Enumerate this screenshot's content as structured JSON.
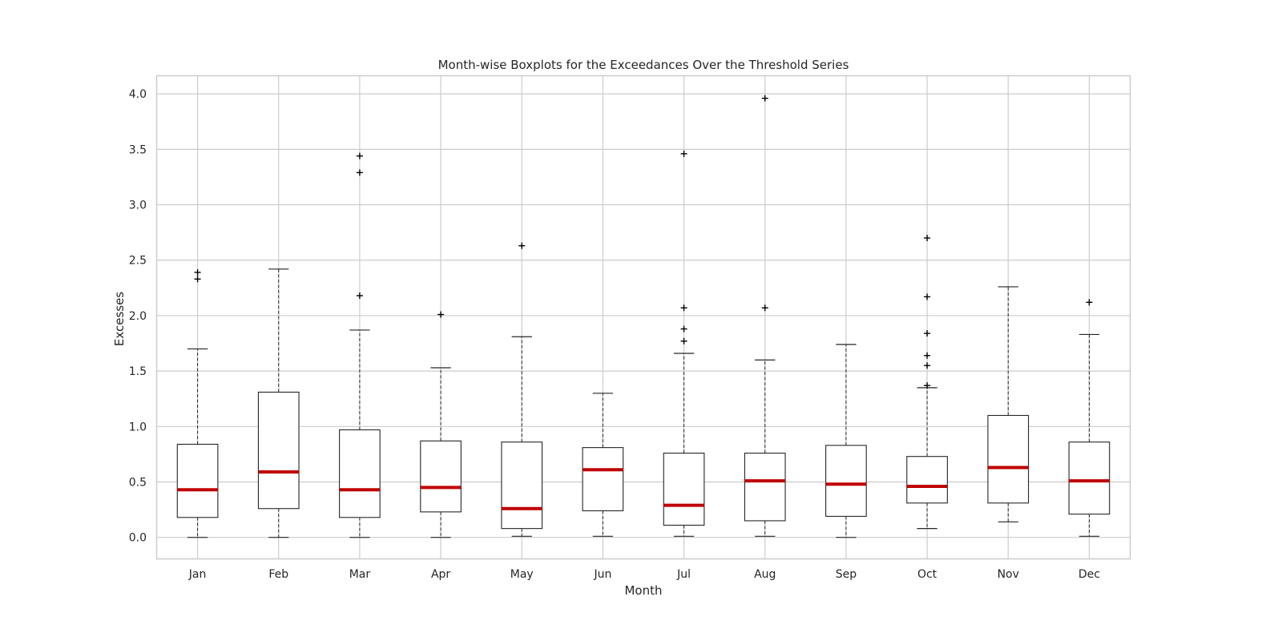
{
  "chart_data": {
    "type": "boxplot",
    "title": "Month-wise Boxplots for the Exceedances Over the Threshold Series",
    "xlabel": "Month",
    "ylabel": "Excesses",
    "ylim": [
      -0.19,
      4.16
    ],
    "yticks": [
      "0.0",
      "0.5",
      "1.0",
      "1.5",
      "2.0",
      "2.5",
      "3.0",
      "3.5",
      "4.0"
    ],
    "grid": true,
    "colors": {
      "median": "#c00000",
      "box": "#262626",
      "grid": "#cccccc",
      "frame": "#cccccc"
    },
    "categories": [
      "Jan",
      "Feb",
      "Mar",
      "Apr",
      "May",
      "Jun",
      "Jul",
      "Aug",
      "Sep",
      "Oct",
      "Nov",
      "Dec"
    ],
    "boxes": [
      {
        "whislo": 0.0,
        "q1": 0.18,
        "med": 0.43,
        "q3": 0.84,
        "whishi": 1.7,
        "fliers": [
          2.33,
          2.39
        ]
      },
      {
        "whislo": 0.0,
        "q1": 0.26,
        "med": 0.59,
        "q3": 1.31,
        "whishi": 2.42,
        "fliers": []
      },
      {
        "whislo": 0.0,
        "q1": 0.18,
        "med": 0.43,
        "q3": 0.97,
        "whishi": 1.87,
        "fliers": [
          2.18,
          3.29,
          3.44
        ]
      },
      {
        "whislo": 0.0,
        "q1": 0.23,
        "med": 0.45,
        "q3": 0.87,
        "whishi": 1.53,
        "fliers": [
          2.01
        ]
      },
      {
        "whislo": 0.01,
        "q1": 0.08,
        "med": 0.26,
        "q3": 0.86,
        "whishi": 1.81,
        "fliers": [
          2.63
        ]
      },
      {
        "whislo": 0.01,
        "q1": 0.24,
        "med": 0.61,
        "q3": 0.81,
        "whishi": 1.3,
        "fliers": []
      },
      {
        "whislo": 0.01,
        "q1": 0.11,
        "med": 0.29,
        "q3": 0.76,
        "whishi": 1.66,
        "fliers": [
          1.77,
          1.88,
          2.07,
          3.46
        ]
      },
      {
        "whislo": 0.01,
        "q1": 0.15,
        "med": 0.51,
        "q3": 0.76,
        "whishi": 1.6,
        "fliers": [
          2.07,
          3.96
        ]
      },
      {
        "whislo": 0.0,
        "q1": 0.19,
        "med": 0.48,
        "q3": 0.83,
        "whishi": 1.74,
        "fliers": []
      },
      {
        "whislo": 0.08,
        "q1": 0.31,
        "med": 0.46,
        "q3": 0.73,
        "whishi": 1.35,
        "fliers": [
          1.37,
          1.55,
          1.64,
          1.84,
          2.17,
          2.7
        ]
      },
      {
        "whislo": 0.14,
        "q1": 0.31,
        "med": 0.63,
        "q3": 1.1,
        "whishi": 2.26,
        "fliers": []
      },
      {
        "whislo": 0.01,
        "q1": 0.21,
        "med": 0.51,
        "q3": 0.86,
        "whishi": 1.83,
        "fliers": [
          2.12
        ]
      }
    ]
  }
}
